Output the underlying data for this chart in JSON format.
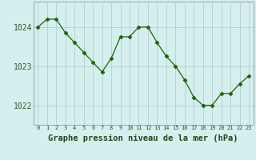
{
  "x": [
    0,
    1,
    2,
    3,
    4,
    5,
    6,
    7,
    8,
    9,
    10,
    11,
    12,
    13,
    14,
    15,
    16,
    17,
    18,
    19,
    20,
    21,
    22,
    23
  ],
  "y": [
    1024.0,
    1024.2,
    1024.2,
    1023.85,
    1023.6,
    1023.35,
    1023.1,
    1022.85,
    1023.2,
    1023.75,
    1023.75,
    1024.0,
    1024.0,
    1023.6,
    1023.25,
    1023.0,
    1022.65,
    1022.2,
    1022.0,
    1022.0,
    1022.3,
    1022.3,
    1022.55,
    1022.75
  ],
  "line_color": "#1a6600",
  "marker": "D",
  "marker_size": 2.5,
  "bg_color": "#d5efef",
  "grid_color": "#b0c8c8",
  "xlabel": "Graphe pression niveau de la mer (hPa)",
  "xlabel_fontsize": 7.5,
  "ytick_labels": [
    "1022",
    "1023",
    "1024"
  ],
  "yticks": [
    1022,
    1023,
    1024
  ],
  "xtick_labels": [
    "0",
    "1",
    "2",
    "3",
    "4",
    "5",
    "6",
    "7",
    "8",
    "9",
    "10",
    "11",
    "12",
    "13",
    "14",
    "15",
    "16",
    "17",
    "18",
    "19",
    "20",
    "21",
    "22",
    "23"
  ],
  "ylim": [
    1021.5,
    1024.65
  ],
  "xlim": [
    -0.5,
    23.5
  ],
  "tick_color": "#2a5a2a",
  "label_color": "#1a4a1a"
}
